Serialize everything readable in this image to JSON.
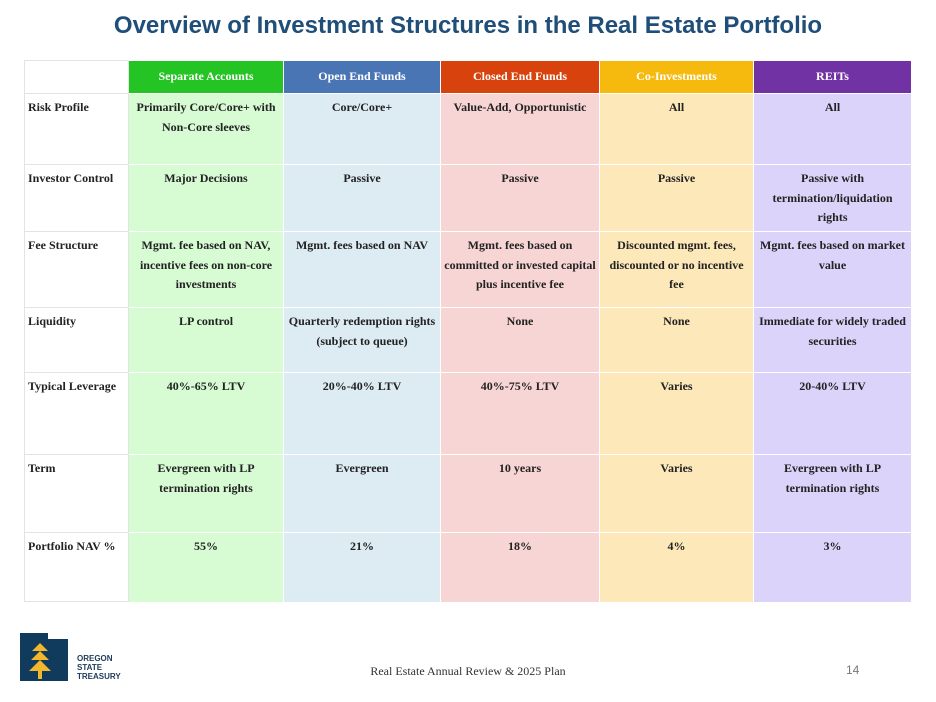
{
  "title": "Overview of Investment Structures in the Real Estate Portfolio",
  "colors": {
    "title": "#1f4e79",
    "separate_accounts": "#23c423",
    "open_end_funds": "#4a75b5",
    "closed_end_funds": "#d8420c",
    "co_investments": "#f6b90d",
    "reits": "#7133a4"
  },
  "table": {
    "headers": [
      "Separate Accounts",
      "Open End Funds",
      "Closed End Funds",
      "Co-Investments",
      "REITs"
    ],
    "rows": [
      {
        "label": "Risk Profile",
        "cells": [
          "Primarily Core/Core+ with Non-Core sleeves",
          "Core/Core+",
          "Value-Add, Opportunistic",
          "All",
          "All"
        ]
      },
      {
        "label": "Investor Control",
        "cells": [
          "Major Decisions",
          "Passive",
          "Passive",
          "Passive",
          "Passive with termination/liquidation rights"
        ]
      },
      {
        "label": "Fee Structure",
        "cells": [
          "Mgmt. fee based on NAV, incentive fees on non-core investments",
          "Mgmt. fees based on NAV",
          "Mgmt. fees based on committed or invested capital plus incentive fee",
          "Discounted mgmt. fees, discounted or no incentive fee",
          "Mgmt. fees based on market value"
        ]
      },
      {
        "label": "Liquidity",
        "cells": [
          "LP control",
          "Quarterly redemption rights (subject to queue)",
          "None",
          "None",
          "Immediate for widely traded securities"
        ]
      },
      {
        "label": "Typical Leverage",
        "cells": [
          "40%-65% LTV",
          "20%-40% LTV",
          "40%-75% LTV",
          "Varies",
          "20-40% LTV"
        ]
      },
      {
        "label": "Term",
        "cells": [
          "Evergreen with LP termination rights",
          "Evergreen",
          "10 years",
          "Varies",
          "Evergreen with LP termination rights"
        ]
      },
      {
        "label": "Portfolio NAV %",
        "cells": [
          "55%",
          "21%",
          "18%",
          "4%",
          "3%"
        ]
      }
    ]
  },
  "footer": {
    "logo_icon": "oregon-state-treasury-logo",
    "logo_text": [
      "OREGON",
      "STATE",
      "TREASURY"
    ],
    "text": "Real Estate Annual Review & 2025 Plan",
    "page_number": "14"
  }
}
